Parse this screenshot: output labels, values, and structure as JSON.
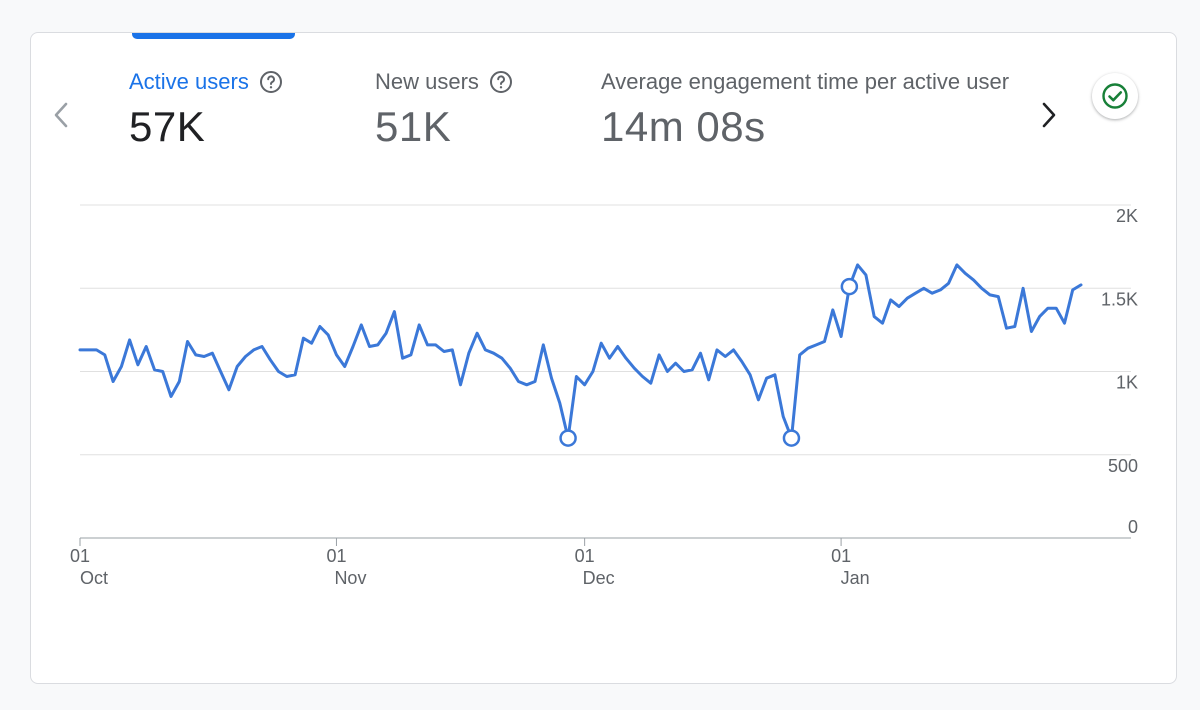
{
  "metrics": [
    {
      "label": "Active users",
      "value": "57K",
      "active": true
    },
    {
      "label": "New users",
      "value": "51K",
      "active": false
    },
    {
      "label": "Average engagement time per active user",
      "value": "14m 08s",
      "active": false
    }
  ],
  "icons": {
    "help": "help-circle-icon",
    "prev": "chevron-left-icon",
    "next": "chevron-right-icon",
    "status": "check-circle-icon"
  },
  "colors": {
    "accent": "#1a73e8",
    "line": "#3b78d8",
    "status": "#188038"
  },
  "chart_data": {
    "type": "line",
    "series": [
      {
        "values": [
          1130,
          1130,
          1130,
          1100,
          940,
          1030,
          1190,
          1040,
          1150,
          1010,
          1000,
          850,
          940,
          1180,
          1100,
          1090,
          1110,
          1000,
          890,
          1030,
          1090,
          1130,
          1150,
          1070,
          1000,
          970,
          980,
          1200,
          1170,
          1270,
          1220,
          1100,
          1030,
          1150,
          1280,
          1150,
          1160,
          1230,
          1360,
          1080,
          1100,
          1280,
          1160,
          1160,
          1120,
          1130,
          920,
          1110,
          1230,
          1130,
          1110,
          1080,
          1020,
          940,
          920,
          940,
          1160,
          960,
          810,
          600,
          970,
          920,
          1000,
          1170,
          1080,
          1150,
          1080,
          1020,
          970,
          930,
          1100,
          1000,
          1050,
          1000,
          1010,
          1110,
          950,
          1130,
          1090,
          1130,
          1060,
          980,
          830,
          960,
          980,
          730,
          600,
          1100,
          1140,
          1160,
          1180,
          1370,
          1210,
          1510,
          1640,
          1580,
          1330,
          1290,
          1430,
          1390,
          1440,
          1470,
          1500,
          1470,
          1490,
          1530,
          1640,
          1590,
          1550,
          1500,
          1460,
          1450,
          1260,
          1270,
          1500,
          1240,
          1330,
          1380,
          1380,
          1290,
          1490,
          1520
        ]
      }
    ],
    "highlight_points": [
      {
        "index": 59,
        "value": 600
      },
      {
        "index": 86,
        "value": 600
      },
      {
        "index": 93,
        "value": 1510
      }
    ],
    "x_ticks": [
      {
        "index": 0,
        "day": "01",
        "month": "Oct"
      },
      {
        "index": 31,
        "day": "01",
        "month": "Nov"
      },
      {
        "index": 61,
        "day": "01",
        "month": "Dec"
      },
      {
        "index": 92,
        "day": "01",
        "month": "Jan"
      }
    ],
    "y_ticks": [
      {
        "value": 0,
        "label": "0"
      },
      {
        "value": 500,
        "label": "500"
      },
      {
        "value": 1000,
        "label": "1K"
      },
      {
        "value": 1500,
        "label": "1.5K"
      },
      {
        "value": 2000,
        "label": "2K"
      }
    ],
    "ylim": [
      0,
      2000
    ],
    "grid": true,
    "y_axis_position": "right"
  }
}
